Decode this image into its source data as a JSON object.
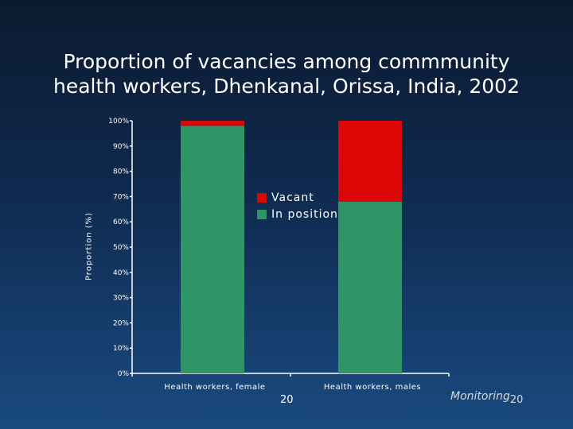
{
  "title_line1": "Proportion of vacancies among commmunity",
  "title_line2": "health workers, Dhenkanal, Orissa, India, 2002",
  "footer": {
    "page_number": "20",
    "section": "Monitoring",
    "section_page": "20"
  },
  "colors": {
    "vacant": "#dd0606",
    "in_position": "#2f9566",
    "axis": "#ffffff"
  },
  "chart_data": {
    "type": "bar",
    "stacked": true,
    "categories": [
      "Health workers, female",
      "Health workers, males"
    ],
    "series": [
      {
        "name": "In position",
        "values": [
          98,
          68
        ]
      },
      {
        "name": "Vacant",
        "values": [
          2,
          32
        ]
      }
    ],
    "ylabel": "Proportion (%)",
    "xlabel": "",
    "ylim": [
      0,
      100
    ],
    "yticks": [
      "0%",
      "10%",
      "20%",
      "30%",
      "40%",
      "50%",
      "60%",
      "70%",
      "80%",
      "90%",
      "100%"
    ],
    "legend": {
      "position": "center",
      "entries": [
        "Vacant",
        "In position"
      ]
    },
    "grid": false
  }
}
